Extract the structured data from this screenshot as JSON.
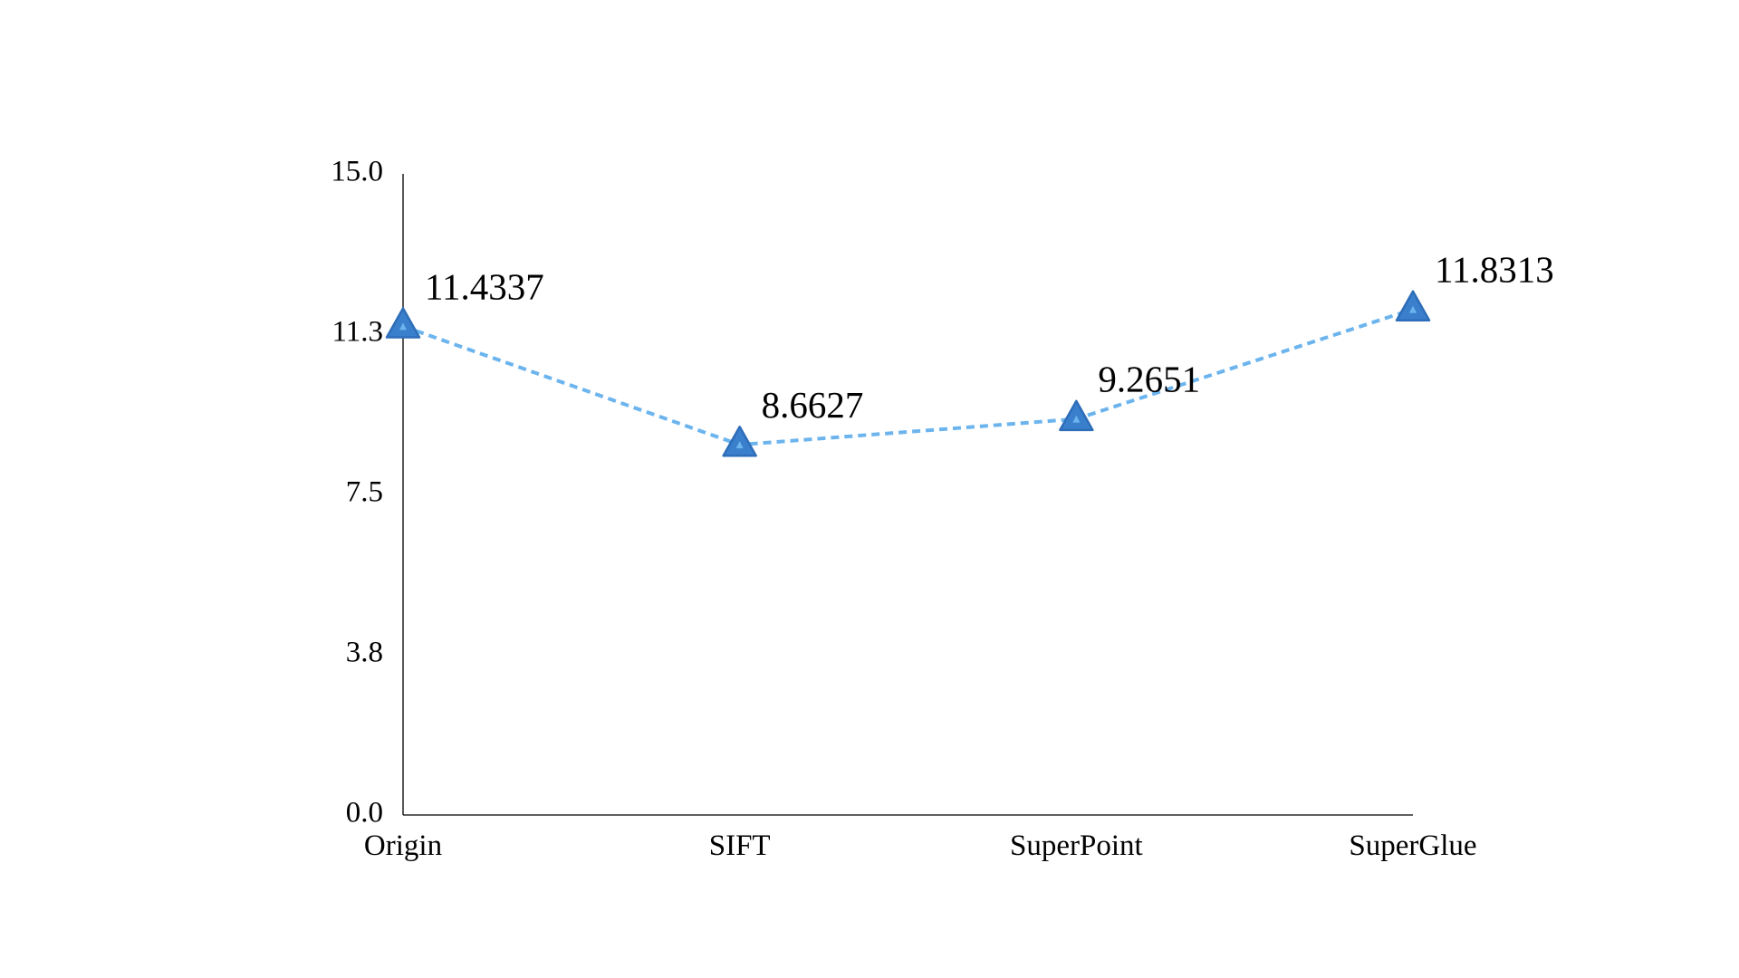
{
  "chart_data": {
    "type": "line",
    "categories": [
      "Origin",
      "SIFT",
      "SuperPoint",
      "SuperGlue"
    ],
    "series": [
      {
        "values": [
          11.4337,
          8.6627,
          9.2651,
          11.8313
        ],
        "labels": [
          "11.4337",
          "8.6627",
          "9.2651",
          "11.8313"
        ]
      }
    ],
    "ylim": [
      0,
      15
    ],
    "yticks": [
      0,
      3.75,
      7.5,
      11.25,
      15
    ],
    "ytick_labels": [
      "0.0",
      "3.8",
      "7.5",
      "11.3",
      "15.0"
    ],
    "title": "",
    "xlabel": "",
    "ylabel": "",
    "grid": false,
    "legend": "none",
    "line_style": "dashed",
    "marker": "triangle",
    "colors": {
      "line": "#6CB4EE",
      "marker_stroke": "#2E6DB8",
      "marker_fill": "#3A7FCC",
      "marker_center": "#6CB4EE",
      "axis": "#000000"
    }
  }
}
